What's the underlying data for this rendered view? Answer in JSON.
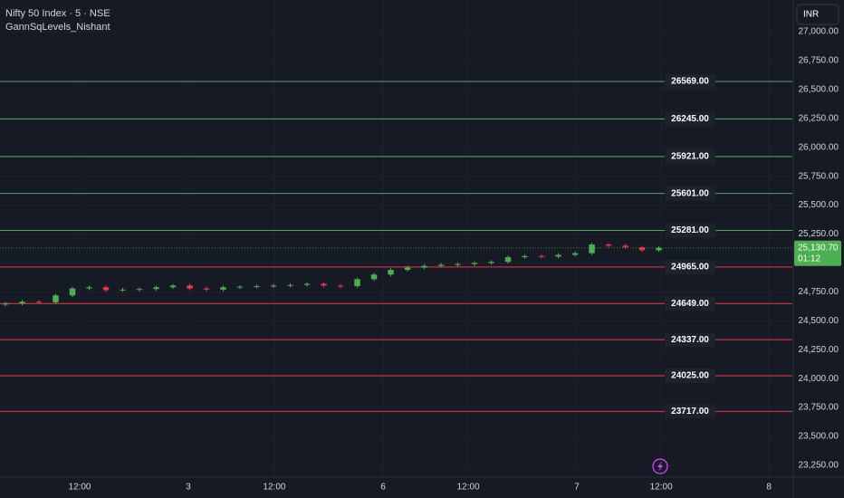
{
  "chart_data": {
    "type": "candlestick",
    "title": "Nifty 50 Index · 5 · NSE",
    "subtitle": "GannSqLevels_Nishant",
    "currency": "INR",
    "x": [
      0,
      1,
      2,
      3,
      4,
      5,
      6,
      7,
      8,
      9,
      10,
      11,
      12,
      13,
      14,
      15,
      16,
      17,
      18,
      19,
      20,
      21,
      22,
      23,
      24,
      25,
      26,
      27,
      28,
      29,
      30,
      31,
      32,
      33,
      34,
      35,
      36,
      37,
      38,
      39
    ],
    "open": [
      24640,
      24650,
      24665,
      24660,
      24720,
      24780,
      24790,
      24765,
      24770,
      24775,
      24790,
      24805,
      24780,
      24770,
      24790,
      24795,
      24800,
      24805,
      24810,
      24820,
      24805,
      24800,
      24860,
      24900,
      24940,
      24960,
      24975,
      24985,
      24990,
      25000,
      25010,
      25050,
      25060,
      25055,
      25070,
      25085,
      25160,
      25150,
      25135,
      25110
    ],
    "high": [
      24665,
      24680,
      24680,
      24735,
      24795,
      24805,
      24805,
      24785,
      24790,
      24805,
      24820,
      24820,
      24795,
      24805,
      24810,
      24815,
      24820,
      24825,
      24835,
      24835,
      24820,
      24875,
      24915,
      24955,
      24975,
      24990,
      25000,
      25005,
      25015,
      25025,
      25065,
      25075,
      25075,
      25085,
      25100,
      25175,
      25175,
      25165,
      25150,
      25145
    ],
    "low": [
      24625,
      24635,
      24645,
      24645,
      24705,
      24765,
      24750,
      24750,
      24755,
      24760,
      24775,
      24765,
      24755,
      24755,
      24775,
      24780,
      24785,
      24790,
      24795,
      24790,
      24785,
      24785,
      24845,
      24885,
      24925,
      24945,
      24960,
      24970,
      24975,
      24985,
      24995,
      25035,
      25040,
      25040,
      25055,
      25070,
      25135,
      25120,
      25095,
      25095
    ],
    "close": [
      24650,
      24665,
      24660,
      24720,
      24780,
      24790,
      24765,
      24770,
      24775,
      24790,
      24805,
      24780,
      24770,
      24790,
      24795,
      24800,
      24805,
      24810,
      24820,
      24805,
      24800,
      24860,
      24900,
      24940,
      24960,
      24975,
      24985,
      24990,
      25000,
      25010,
      25050,
      25060,
      25055,
      25070,
      25085,
      25160,
      25150,
      25135,
      25110,
      25130.7
    ],
    "up_color": "#4caf50",
    "down_color": "#f23645",
    "levels": [
      {
        "color": "#4caf50",
        "values": [
          26569,
          26245,
          25921,
          25601,
          25281
        ],
        "value_labels": [
          "26569.00",
          "26245.00",
          "25921.00",
          "25601.00",
          "25281.00"
        ]
      },
      {
        "color": "#f23645",
        "values": [
          24965,
          24649,
          24337,
          24025,
          23717
        ],
        "value_labels": [
          "24965.00",
          "24649.00",
          "24337.00",
          "24025.00",
          "23717.00"
        ]
      }
    ],
    "last_price": {
      "value": 25130.7,
      "label": "25,130.70"
    },
    "countdown": "01:12",
    "xlim": [
      -0.324,
      46.97
    ],
    "xticks": [
      {
        "value": 4.43,
        "label": "12:00"
      },
      {
        "value": 10.92,
        "label": "3"
      },
      {
        "value": 16.05,
        "label": "12:00"
      },
      {
        "value": 22.54,
        "label": "6"
      },
      {
        "value": 27.62,
        "label": "12:00"
      },
      {
        "value": 34.11,
        "label": "7"
      },
      {
        "value": 39.14,
        "label": "12:00"
      },
      {
        "value": 45.57,
        "label": "8"
      }
    ],
    "ylim": [
      23148,
      27274
    ],
    "yticks": [
      {
        "value": 23250,
        "label": "23,250.00"
      },
      {
        "value": 23500,
        "label": "23,500.00"
      },
      {
        "value": 23750,
        "label": "23,750.00"
      },
      {
        "value": 24000,
        "label": "24,000.00"
      },
      {
        "value": 24250,
        "label": "24,250.00"
      },
      {
        "value": 24500,
        "label": "24,500.00"
      },
      {
        "value": 24750,
        "label": "24,750.00"
      },
      {
        "value": 25000,
        "label": "25,000.00"
      },
      {
        "value": 25250,
        "label": "25,250.00"
      },
      {
        "value": 25500,
        "label": "25,500.00"
      },
      {
        "value": 25750,
        "label": "25,750.00"
      },
      {
        "value": 26000,
        "label": "26,000.00"
      },
      {
        "value": 26250,
        "label": "26,250.00"
      },
      {
        "value": 26500,
        "label": "26,500.00"
      },
      {
        "value": 26750,
        "label": "26,750.00"
      },
      {
        "value": 27000,
        "label": "27,000.00"
      }
    ],
    "grid": true
  }
}
